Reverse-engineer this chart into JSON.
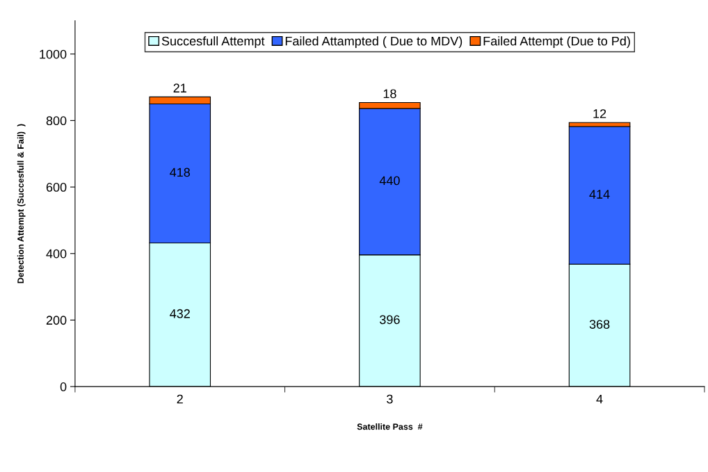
{
  "chart_data": {
    "type": "bar",
    "stacked": true,
    "xlabel": "Satellite Pass  #",
    "ylabel": "Detection Attempt (Succesfull & Fail)  )",
    "categories": [
      "2",
      "3",
      "4"
    ],
    "series": [
      {
        "name": "Succesfull Attempt",
        "color": "#ccffff",
        "values": [
          432,
          396,
          368
        ]
      },
      {
        "name": "Failed Attampted ( Due to MDV)",
        "color": "#3366ff",
        "values": [
          418,
          440,
          414
        ]
      },
      {
        "name": "Failed Attempt (Due to Pd)",
        "color": "#ff6600",
        "values": [
          21,
          18,
          12
        ]
      }
    ],
    "ylim": [
      0,
      1100
    ],
    "yticks": [
      0,
      200,
      400,
      600,
      800,
      1000
    ],
    "grid": false,
    "legend": "top",
    "data_labels": true
  }
}
